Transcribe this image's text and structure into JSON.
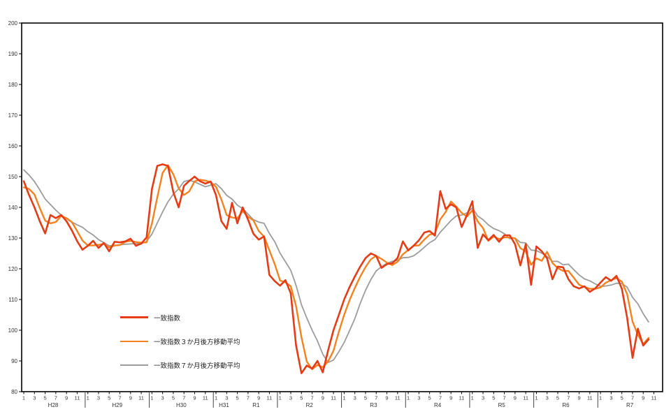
{
  "chart_data": {
    "type": "line",
    "title": "",
    "ylim": [
      80,
      200
    ],
    "ytick_step": 10,
    "grid": false,
    "legend_position": "middle-left",
    "month_ticks": [
      1,
      3,
      5,
      7,
      9,
      11
    ],
    "years": [
      {
        "labels": [
          "H28"
        ]
      },
      {
        "labels": [
          "H29"
        ]
      },
      {
        "labels": [
          "H30"
        ]
      },
      {
        "labels": [
          "H31",
          "R1"
        ]
      },
      {
        "labels": [
          "R2"
        ]
      },
      {
        "labels": [
          "R3"
        ]
      },
      {
        "labels": [
          "R4"
        ]
      },
      {
        "labels": [
          "R5"
        ]
      },
      {
        "labels": [
          "R6"
        ]
      },
      {
        "labels": [
          "R7"
        ]
      }
    ],
    "series": [
      {
        "name": "一致指数",
        "color": "#e43c17",
        "width": 2.6,
        "values": [
          148.5,
          144,
          140,
          135.5,
          131.5,
          137.5,
          136.5,
          137.5,
          135.5,
          132.5,
          129,
          126.2,
          127.5,
          129.1,
          126.8,
          128.4,
          125.7,
          128.8,
          128.6,
          128.9,
          129.8,
          127.5,
          128.2,
          130.2,
          146,
          153.5,
          154,
          153.5,
          145,
          140,
          147,
          148.6,
          150,
          148.5,
          147.7,
          148.4,
          144,
          135.5,
          133,
          141.5,
          134.8,
          140,
          136,
          131.4,
          129.5,
          130.5,
          118,
          116,
          114.5,
          116.3,
          112,
          95,
          86,
          88.5,
          87.5,
          90,
          86.3,
          93.5,
          100,
          105,
          110,
          114,
          117.5,
          120.7,
          123.5,
          125,
          124.2,
          120.3,
          121.5,
          121.8,
          123.5,
          128.9,
          126,
          127.5,
          129.3,
          131.8,
          132.3,
          130.8,
          145.3,
          139.5,
          141,
          140,
          133.6,
          137.5,
          142,
          126.8,
          131.2,
          129.3,
          131,
          128.8,
          130.9,
          130.9,
          128,
          121.1,
          128,
          114.8,
          127.3,
          125.7,
          123.4,
          116.6,
          120.7,
          120.5,
          116.6,
          114.3,
          113.6,
          114.3,
          112.5,
          113.6,
          115.5,
          117.3,
          116.1,
          117.7,
          113.5,
          104,
          91,
          100.5,
          95,
          97,
          null,
          null
        ]
      },
      {
        "name": "一致指数３か月後方移動平均",
        "color": "#f58220",
        "width": 2.4,
        "values": [
          146.5,
          146,
          144.2,
          139.8,
          135.7,
          134.8,
          135.2,
          137.2,
          136.5,
          135.2,
          132.3,
          129.2,
          127.6,
          127.6,
          127.8,
          128.1,
          127,
          127.6,
          127.7,
          128.8,
          129.1,
          128.7,
          128.5,
          128.6,
          134.8,
          143.2,
          151.2,
          153.7,
          150.8,
          146.2,
          144,
          145.2,
          148.5,
          149,
          148.7,
          148.2,
          146.7,
          142.6,
          137.5,
          136.7,
          136.4,
          138.8,
          136.9,
          135.8,
          132.3,
          130.5,
          126,
          121.5,
          116.2,
          115.6,
          114.3,
          107.8,
          97.7,
          89.8,
          87.3,
          88.7,
          87.9,
          89.9,
          93.3,
          99.5,
          105,
          109.7,
          113.8,
          117.4,
          120.6,
          123.1,
          124.2,
          123.2,
          122,
          121.2,
          122.3,
          124.7,
          126.1,
          127.5,
          127.6,
          129.5,
          131.1,
          131.6,
          136.1,
          138.5,
          141.9,
          140.2,
          138.2,
          137,
          139,
          135.4,
          133.3,
          129.1,
          130.5,
          129.7,
          130.2,
          130.2,
          129.9,
          126.7,
          125.7,
          121.3,
          123.4,
          122.6,
          125.5,
          121.9,
          120.2,
          119.3,
          119.3,
          117.1,
          114.8,
          114.1,
          113.5,
          113.5,
          113.9,
          115.5,
          116.3,
          117,
          115.8,
          111.7,
          102.8,
          98.5,
          95.5,
          97.5,
          null,
          null
        ]
      },
      {
        "name": "一致指数７か月後方移動平均",
        "color": "#9c9c9c",
        "width": 1.8,
        "values": [
          152.2,
          150.5,
          148.4,
          145.7,
          142.7,
          140.9,
          139.1,
          137.5,
          136.3,
          135.2,
          134.3,
          133.5,
          132.1,
          131,
          129.5,
          128.5,
          127.5,
          127.5,
          127.8,
          128,
          128.1,
          128.2,
          128.2,
          128.9,
          131.3,
          134.9,
          138.5,
          141.8,
          144.3,
          146,
          148.4,
          148.8,
          148.3,
          147.5,
          146.7,
          147.2,
          147.7,
          146.1,
          143.9,
          142.7,
          140.7,
          139.6,
          137.8,
          136,
          135.2,
          134.8,
          131.5,
          128.8,
          125.1,
          122.3,
          119.5,
          114.6,
          108.3,
          104,
          100,
          96.5,
          92.2,
          89.5,
          90.3,
          93,
          96,
          99.8,
          103.8,
          108.7,
          113,
          116.5,
          119.3,
          120.7,
          121.8,
          122.4,
          122.8,
          123.6,
          123.7,
          124.2,
          125.5,
          127,
          128.5,
          129.5,
          131.9,
          133.8,
          135.7,
          137.2,
          137.5,
          138.2,
          139.8,
          137.2,
          136,
          134.3,
          133.1,
          132.4,
          131.4,
          129.8,
          130,
          128.6,
          128.4,
          126.1,
          125.9,
          125.1,
          124,
          122.4,
          122.4,
          121.3,
          121.5,
          119.7,
          118,
          116.7,
          116.1,
          115.1,
          114.3,
          114.4,
          114.7,
          115.3,
          115.2,
          114,
          110.7,
          108.6,
          105.4,
          102.7,
          null,
          null
        ]
      }
    ]
  }
}
